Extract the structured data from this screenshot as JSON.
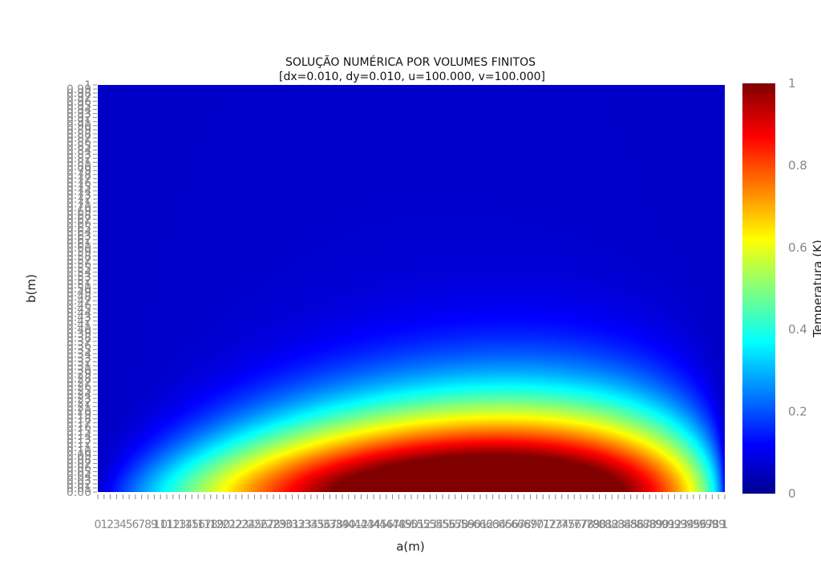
{
  "chart_data": {
    "type": "heatmap",
    "title": "SOLUÇÃO NUMÉRICA POR VOLUMES FINITOS",
    "subtitle": "[dx=0.010, dy=0.010, u=100.000, v=100.000]",
    "xlabel": "a(m)",
    "ylabel": "b(m)",
    "xlim": [
      0,
      1
    ],
    "ylim": [
      0,
      1
    ],
    "grid": false,
    "colorbar": {
      "title": "Temperatura (K)",
      "range": [
        0,
        1
      ],
      "ticks": [
        "0",
        "0.2",
        "0.4",
        "0.6",
        "0.8",
        "1"
      ],
      "colorscale": "jet"
    },
    "field": {
      "description_values": "Temperature field over a×b domain; max 1 near bottom around a≈0.45–0.75, decaying upward and to the left/right edges",
      "x_range": [
        0,
        1
      ],
      "y_range": [
        0,
        1
      ],
      "grid_step": 0.01,
      "peak_value": 1,
      "min_value": 0
    }
  }
}
